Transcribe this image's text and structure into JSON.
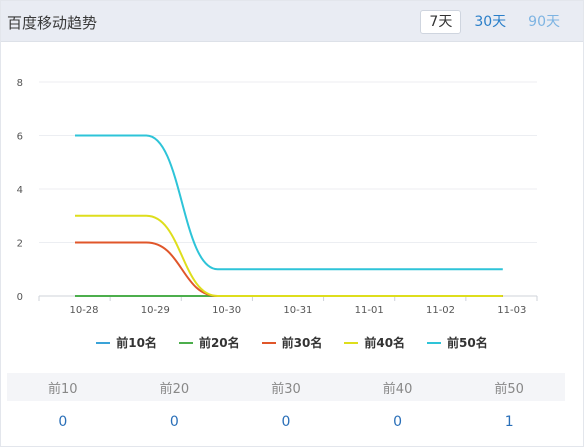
{
  "header": {
    "title": "百度移动趋势",
    "tabs": [
      {
        "label": "7天",
        "active": true
      },
      {
        "label": "30天",
        "active": false
      },
      {
        "label": "90天",
        "active": false
      }
    ]
  },
  "chart_data": {
    "type": "line",
    "categories": [
      "10-28",
      "10-29",
      "10-30",
      "10-31",
      "11-01",
      "11-02",
      "11-03"
    ],
    "ylim": [
      0,
      8
    ],
    "yticks": [
      0,
      2,
      4,
      6,
      8
    ],
    "grid": true,
    "legend_position": "bottom",
    "series": [
      {
        "name": "前10名",
        "color": "#3aa3d8",
        "values": [
          0,
          0,
          0,
          0,
          0,
          0,
          0
        ]
      },
      {
        "name": "前20名",
        "color": "#4cae4c",
        "values": [
          0,
          0,
          0,
          0,
          0,
          0,
          0
        ]
      },
      {
        "name": "前30名",
        "color": "#e0562a",
        "values": [
          2,
          2,
          0,
          0,
          0,
          0,
          0
        ]
      },
      {
        "name": "前40名",
        "color": "#dede1c",
        "values": [
          3,
          3,
          0,
          0,
          0,
          0,
          0
        ]
      },
      {
        "name": "前50名",
        "color": "#2ec4d8",
        "values": [
          6,
          6,
          1,
          1,
          1,
          1,
          1
        ]
      }
    ]
  },
  "stats": {
    "headers": [
      "前10",
      "前20",
      "前30",
      "前40",
      "前50"
    ],
    "values": [
      "0",
      "0",
      "0",
      "0",
      "1"
    ]
  }
}
